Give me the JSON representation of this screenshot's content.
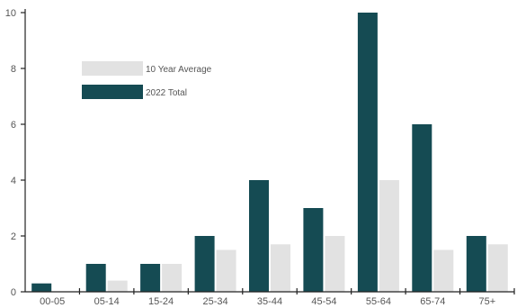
{
  "chart_data": {
    "type": "bar",
    "title": "",
    "xlabel": "",
    "ylabel": "",
    "categories": [
      "00-05",
      "05-14",
      "15-24",
      "25-34",
      "35-44",
      "45-54",
      "55-64",
      "65-74",
      "75+"
    ],
    "series": [
      {
        "name": "2022 Total",
        "color": "#154b53",
        "values": [
          0.3,
          1,
          1,
          2,
          4,
          3,
          10,
          6,
          2
        ]
      },
      {
        "name": "10 Year Average",
        "color": "#e2e2e2",
        "values": [
          0,
          0.4,
          1,
          1.5,
          1.7,
          2,
          4,
          1.5,
          1.7
        ]
      }
    ],
    "ylim": [
      0,
      10
    ],
    "yticks": [
      0,
      2,
      4,
      6,
      8,
      10
    ],
    "grid": false,
    "legend": {
      "position": "upper-left",
      "entries": [
        {
          "label": "10 Year Average",
          "color": "#e2e2e2"
        },
        {
          "label": "2022 Total",
          "color": "#154b53"
        }
      ]
    }
  }
}
